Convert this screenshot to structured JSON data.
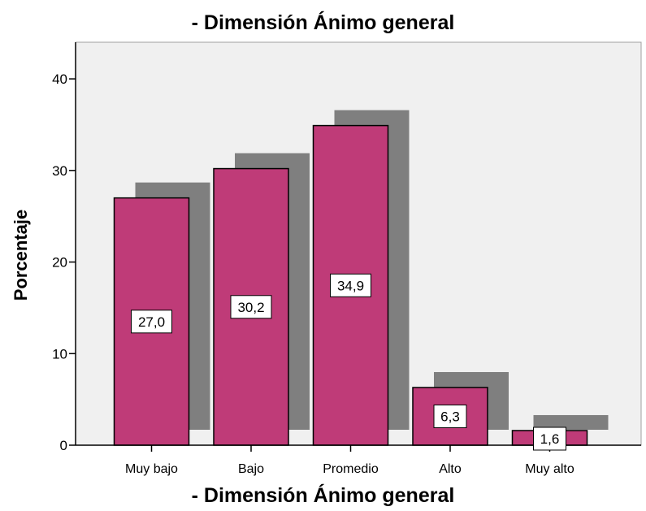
{
  "chart_data": {
    "type": "bar",
    "title": "- Dimensión Ánimo general",
    "xlabel": "- Dimensión Ánimo general",
    "ylabel": "Porcentaje",
    "categories": [
      "Muy bajo",
      "Bajo",
      "Promedio",
      "Alto",
      "Muy alto"
    ],
    "values": [
      27.0,
      30.2,
      34.9,
      6.3,
      1.6
    ],
    "value_labels": [
      "27,0",
      "30,2",
      "34,9",
      "6,3",
      "1,6"
    ],
    "ylim": [
      0,
      44
    ],
    "yticks": [
      0,
      10,
      20,
      30,
      40
    ],
    "ytick_labels": [
      "0",
      "10",
      "20",
      "30",
      "40"
    ],
    "grid": false,
    "style": "3d-shadow",
    "colors": {
      "bar": "#bf3b78",
      "shadow": "#7f7f7f",
      "plot_background": "#f0f0f0"
    }
  }
}
